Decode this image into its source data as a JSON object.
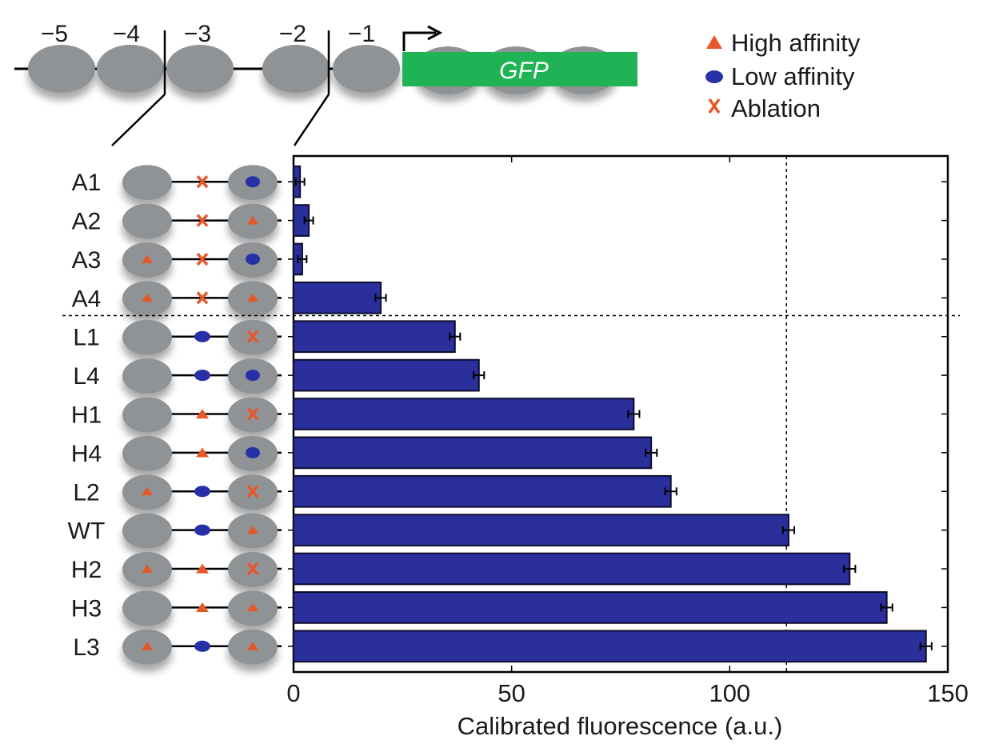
{
  "colors": {
    "bar": "#2a2f9c",
    "bar_edge": "#0d0d2e",
    "nucleosome": "#8f9396",
    "gfp": "#1fb356",
    "high_affinity": "#e8572a",
    "low_affinity": "#2730a6",
    "ablation": "#e8572a"
  },
  "locus": {
    "positions": [
      "−5",
      "−4",
      "−3",
      "−2",
      "−1"
    ],
    "gene_label": "GFP"
  },
  "legend": [
    {
      "symbol": "triangle",
      "label": "High affinity"
    },
    {
      "symbol": "ellipse",
      "label": "Low affinity"
    },
    {
      "symbol": "x",
      "label": "Ablation"
    }
  ],
  "chart_data": {
    "type": "bar",
    "orientation": "horizontal",
    "title": "",
    "xlabel": "Calibrated fluorescence (a.u.)",
    "ylabel": "",
    "xlim": [
      0,
      150
    ],
    "xticks": [
      0,
      50,
      100,
      150
    ],
    "reference_line_x": 113,
    "group_separator_after": "A4",
    "categories": [
      "A1",
      "A2",
      "A3",
      "A4",
      "L1",
      "L4",
      "H1",
      "H4",
      "L2",
      "WT",
      "H2",
      "H3",
      "L3"
    ],
    "values": [
      1.5,
      3.5,
      2,
      20,
      37,
      42.5,
      78,
      82,
      86.5,
      113.5,
      127.5,
      136,
      145
    ],
    "errors": [
      1,
      1,
      1,
      1.2,
      1.2,
      1.2,
      1.3,
      1.3,
      1.3,
      1.3,
      1.3,
      1.3,
      1.3
    ],
    "site_left": [
      "none",
      "none",
      "high",
      "high",
      "none",
      "none",
      "none",
      "none",
      "high",
      "none",
      "high",
      "none",
      "high"
    ],
    "site_middle": [
      "ablation",
      "ablation",
      "ablation",
      "ablation",
      "low",
      "low",
      "high",
      "high",
      "low",
      "low",
      "high",
      "high",
      "low"
    ],
    "site_right": [
      "low",
      "high",
      "low",
      "high",
      "ablation",
      "low",
      "ablation",
      "low",
      "ablation",
      "high",
      "ablation",
      "high",
      "high"
    ]
  }
}
